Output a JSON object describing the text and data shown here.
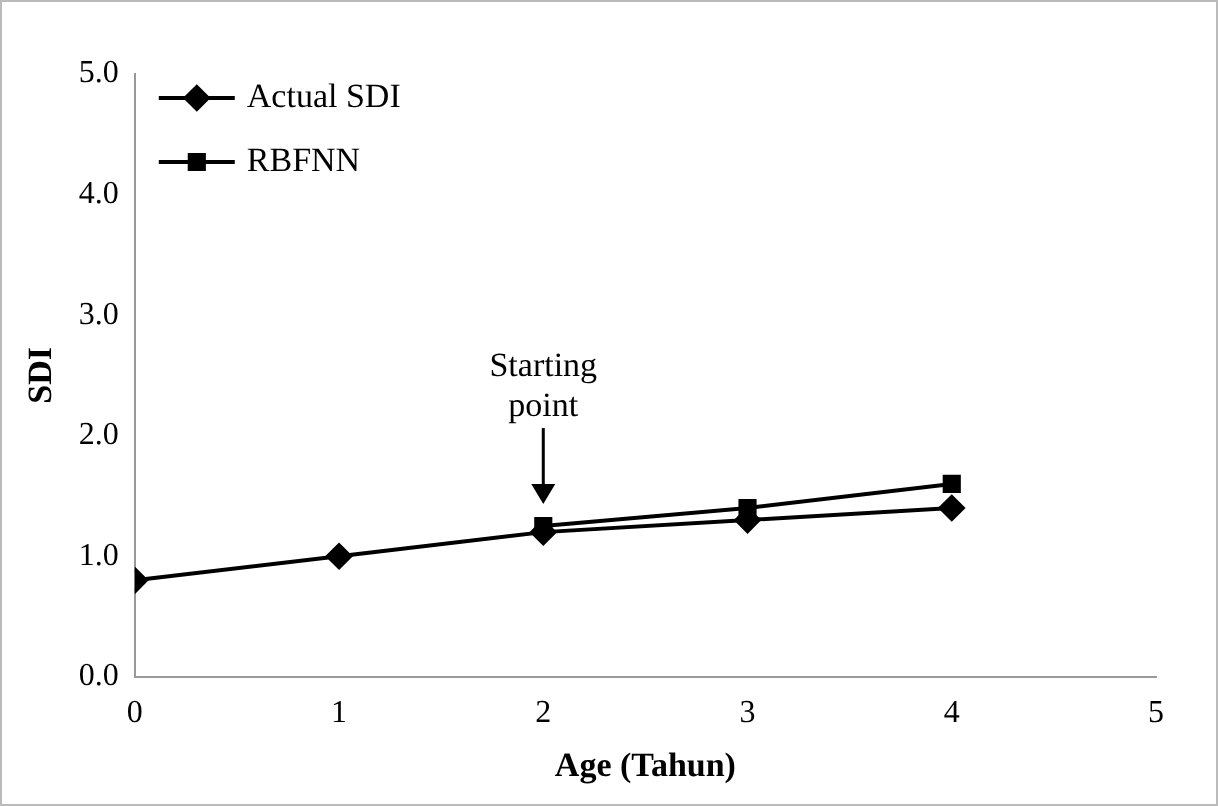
{
  "chart_data": {
    "type": "line",
    "xlabel": "Age (Tahun)",
    "ylabel": "SDI",
    "x": [
      0,
      1,
      2,
      3,
      4
    ],
    "series": [
      {
        "name": "Actual SDI",
        "color": "#000000",
        "marker": "diamond",
        "values": [
          0.8,
          1.0,
          1.2,
          1.3,
          1.4
        ]
      },
      {
        "name": "RBFNN",
        "color": "#000000",
        "marker": "square",
        "x": [
          2,
          3,
          4
        ],
        "values": [
          1.25,
          1.4,
          1.6
        ]
      }
    ],
    "xlim": [
      0,
      5
    ],
    "xticks": [
      0,
      1,
      2,
      3,
      4,
      5
    ],
    "ylim": [
      0,
      5
    ],
    "yticks": [
      {
        "value": 0,
        "label": "0.0"
      },
      {
        "value": 1,
        "label": "1.0"
      },
      {
        "value": 2,
        "label": "2.0"
      },
      {
        "value": 3,
        "label": "3.0"
      },
      {
        "value": 4,
        "label": "4.0"
      },
      {
        "value": 5,
        "label": "5.0"
      }
    ],
    "annotations": [
      {
        "text": "Starting\npoint",
        "x": 2,
        "y": 1.3
      }
    ],
    "grid": false,
    "legend": "top left",
    "line_style": "solid"
  }
}
